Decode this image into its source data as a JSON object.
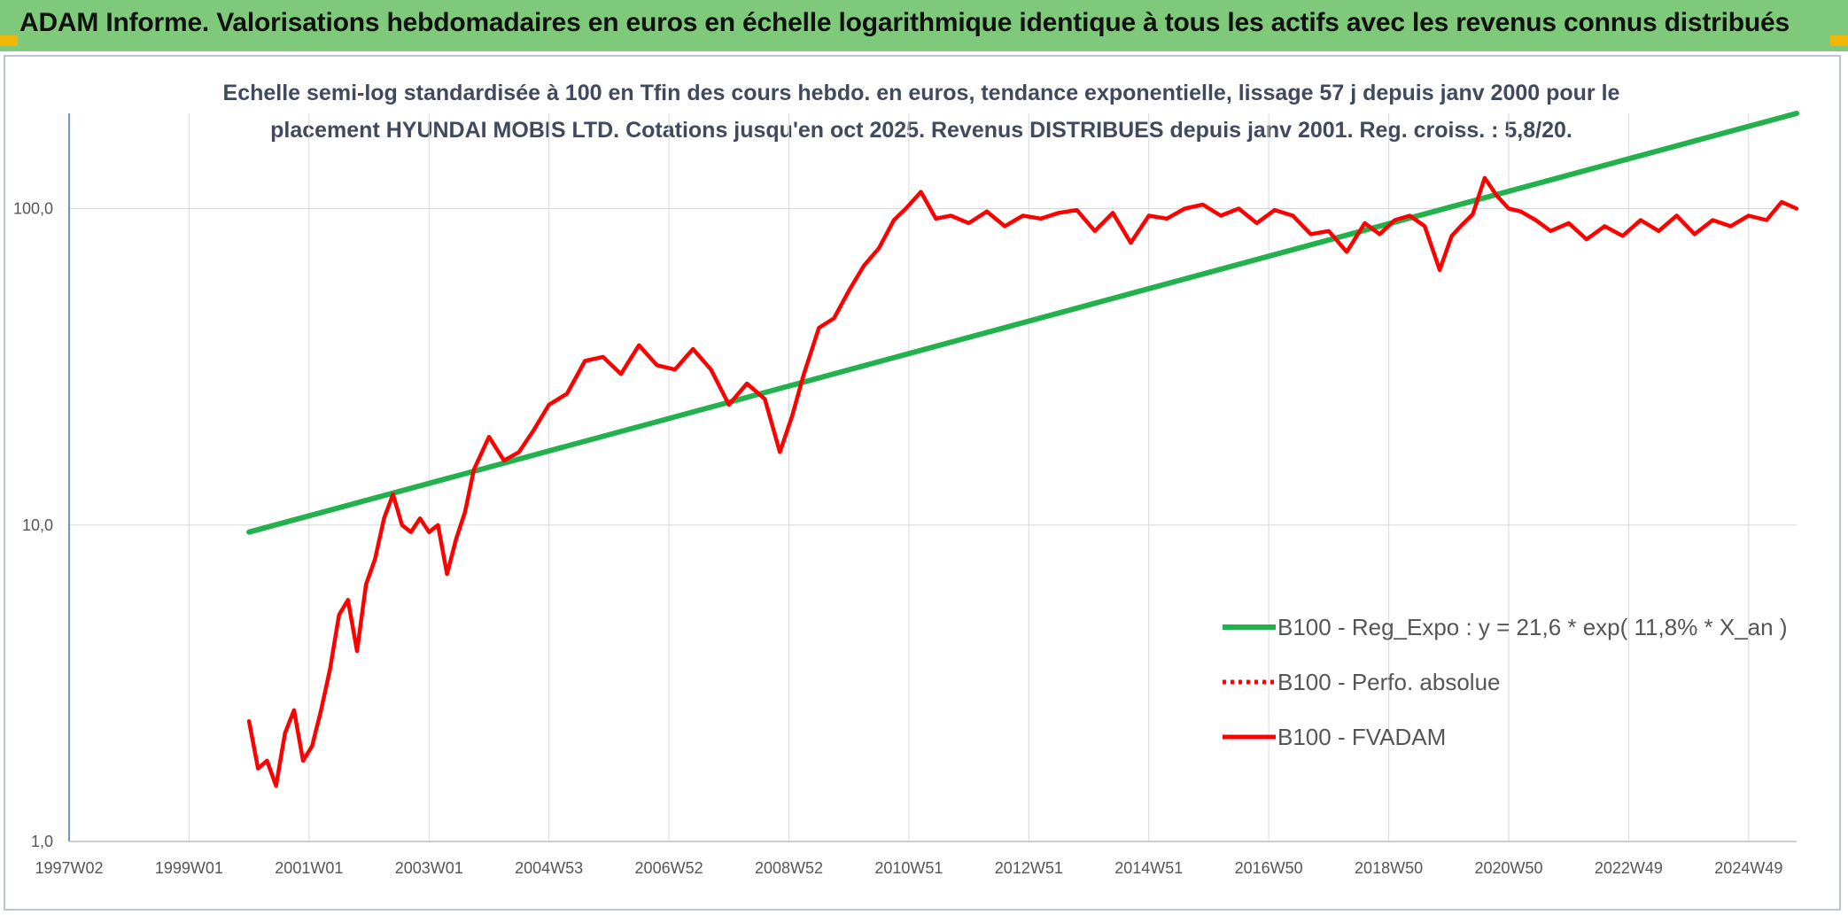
{
  "header": {
    "title": "ADAM Informe. Valorisations hebdomadaires en euros en échelle logarithmique identique à tous les actifs avec les revenus connus distribués"
  },
  "chart_data": {
    "type": "line",
    "title_line1": "Echelle semi-log standardisée à 100 en Tfin des cours hebdo. en euros, tendance exponentielle, lissage 57 j depuis janv 2000 pour le",
    "title_line2": "placement HYUNDAI MOBIS LTD. Cotations jusqu'en oct 2025. Revenus DISTRIBUES depuis janv 2001. Reg. croiss. : 5,8/20.",
    "y_scale": "log",
    "ylim": [
      1,
      200
    ],
    "y_ticks": [
      {
        "value": 1,
        "label": "1,0"
      },
      {
        "value": 10,
        "label": "10,0"
      },
      {
        "value": 100,
        "label": "100,0"
      }
    ],
    "xlim": [
      1997.0,
      2025.8
    ],
    "x_ticks": [
      {
        "year": 1997.0,
        "label": "1997W02"
      },
      {
        "year": 1999.0,
        "label": "1999W01"
      },
      {
        "year": 2001.0,
        "label": "2001W01"
      },
      {
        "year": 2003.0,
        "label": "2003W01"
      },
      {
        "year": 2005.0,
        "label": "2004W53"
      },
      {
        "year": 2007.0,
        "label": "2006W52"
      },
      {
        "year": 2009.0,
        "label": "2008W52"
      },
      {
        "year": 2011.0,
        "label": "2010W51"
      },
      {
        "year": 2013.0,
        "label": "2012W51"
      },
      {
        "year": 2015.0,
        "label": "2014W51"
      },
      {
        "year": 2017.0,
        "label": "2016W50"
      },
      {
        "year": 2019.0,
        "label": "2018W50"
      },
      {
        "year": 2021.0,
        "label": "2020W50"
      },
      {
        "year": 2023.0,
        "label": "2022W49"
      },
      {
        "year": 2025.0,
        "label": "2024W49"
      }
    ],
    "grid": true,
    "legend_position": "right",
    "series": [
      {
        "name": "B100 - Reg_Expo : y = 21,6 * exp( 11,8% *  X_an )",
        "color": "#22b14c",
        "style": "solid",
        "x": [
          2000.0,
          2025.8
        ],
        "y": [
          9.5,
          200
        ]
      },
      {
        "name": "B100 - Perfo. absolue",
        "color": "#ff0000",
        "style": "dotted",
        "x": [],
        "y": []
      },
      {
        "name": "B100 - FVADAM",
        "color": "#ff0000",
        "style": "solid",
        "x": [
          2000.0,
          2000.15,
          2000.3,
          2000.45,
          2000.6,
          2000.75,
          2000.9,
          2001.05,
          2001.2,
          2001.35,
          2001.5,
          2001.65,
          2001.8,
          2001.95,
          2002.1,
          2002.25,
          2002.4,
          2002.55,
          2002.7,
          2002.85,
          2003.0,
          2003.15,
          2003.3,
          2003.45,
          2003.6,
          2003.75,
          2004.0,
          2004.25,
          2004.5,
          2004.75,
          2005.0,
          2005.3,
          2005.6,
          2005.9,
          2006.2,
          2006.5,
          2006.8,
          2007.1,
          2007.4,
          2007.7,
          2008.0,
          2008.3,
          2008.6,
          2008.85,
          2009.05,
          2009.25,
          2009.5,
          2009.75,
          2010.0,
          2010.25,
          2010.5,
          2010.75,
          2010.95,
          2011.2,
          2011.45,
          2011.7,
          2012.0,
          2012.3,
          2012.6,
          2012.9,
          2013.2,
          2013.5,
          2013.8,
          2014.1,
          2014.4,
          2014.7,
          2015.0,
          2015.3,
          2015.6,
          2015.9,
          2016.2,
          2016.5,
          2016.8,
          2017.1,
          2017.4,
          2017.7,
          2018.0,
          2018.3,
          2018.6,
          2018.85,
          2019.1,
          2019.35,
          2019.6,
          2019.85,
          2020.05,
          2020.2,
          2020.4,
          2020.6,
          2020.8,
          2021.0,
          2021.2,
          2021.45,
          2021.7,
          2022.0,
          2022.3,
          2022.6,
          2022.9,
          2023.2,
          2023.5,
          2023.8,
          2024.1,
          2024.4,
          2024.7,
          2025.0,
          2025.3,
          2025.55,
          2025.8
        ],
        "y": [
          2.4,
          1.7,
          1.8,
          1.5,
          2.2,
          2.6,
          1.8,
          2.0,
          2.6,
          3.5,
          5.2,
          5.8,
          4.0,
          6.5,
          7.8,
          10.5,
          12.5,
          10.0,
          9.5,
          10.5,
          9.5,
          10.0,
          7.0,
          9.0,
          11.0,
          15.0,
          19.0,
          16.0,
          17.0,
          20.0,
          24.0,
          26.0,
          33.0,
          34.0,
          30.0,
          37.0,
          32.0,
          31.0,
          36.0,
          31.0,
          24.0,
          28.0,
          25.0,
          17.0,
          22.0,
          30.0,
          42.0,
          45.0,
          55.0,
          66.0,
          75.0,
          92.0,
          100.0,
          113.0,
          93.0,
          95.0,
          90.0,
          98.0,
          88.0,
          95.0,
          93.0,
          97.0,
          99.0,
          85.0,
          97.0,
          78.0,
          95.0,
          93.0,
          100.0,
          103.0,
          95.0,
          100.0,
          90.0,
          99.0,
          95.0,
          83.0,
          85.0,
          73.0,
          90.0,
          83.0,
          92.0,
          95.0,
          88.0,
          64.0,
          82.0,
          88.0,
          96.0,
          125.0,
          110.0,
          100.0,
          98.0,
          92.0,
          85.0,
          90.0,
          80.0,
          88.0,
          82.0,
          92.0,
          85.0,
          95.0,
          83.0,
          92.0,
          88.0,
          95.0,
          92.0,
          105.0,
          100.0
        ]
      }
    ]
  }
}
